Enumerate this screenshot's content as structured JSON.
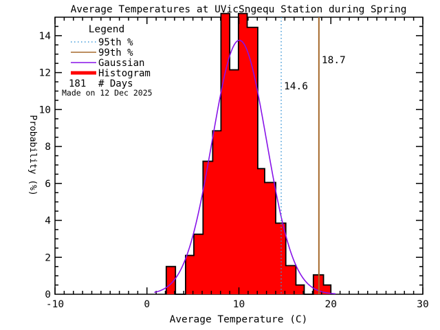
{
  "chart_data": {
    "type": "bar",
    "subtype": "histogram-with-gaussian-fit",
    "title": "Average Temperatures at UVicSngequ Station during Spring",
    "xlabel": "Average Temperature (C)",
    "ylabel": "Probability (%)",
    "xlim": [
      -10,
      30
    ],
    "ylim": [
      0,
      15
    ],
    "x_major_ticks": [
      -10,
      0,
      10,
      20,
      30
    ],
    "x_minor_step": 1,
    "y_major_ticks": [
      0,
      2,
      4,
      6,
      8,
      10,
      12,
      14
    ],
    "y_minor_step": 0.5,
    "grid": false,
    "legend": {
      "position": "top-left-inside",
      "title": "Legend",
      "items": [
        {
          "label": "95th %",
          "style": "dotted",
          "color": "#3F99D8"
        },
        {
          "label": "99th %",
          "style": "solid",
          "color": "#A5692B"
        },
        {
          "label": "Gaussian",
          "style": "solid",
          "color": "#8712E8"
        },
        {
          "label": "Histogram",
          "style": "thick",
          "color": "#FF0000"
        }
      ],
      "days_count": "181",
      "days_label": "# Days"
    },
    "histogram_bins": [
      {
        "x0": 2.1,
        "x1": 3.1,
        "h": 1.5
      },
      {
        "x0": 3.1,
        "x1": 4.2,
        "h": 0
      },
      {
        "x0": 4.2,
        "x1": 5.1,
        "h": 2.1
      },
      {
        "x0": 5.1,
        "x1": 6.1,
        "h": 3.25
      },
      {
        "x0": 6.1,
        "x1": 7.15,
        "h": 7.2
      },
      {
        "x0": 7.15,
        "x1": 8.05,
        "h": 8.85
      },
      {
        "x0": 8.05,
        "x1": 9.0,
        "h": 15.2
      },
      {
        "x0": 9.0,
        "x1": 9.95,
        "h": 12.15
      },
      {
        "x0": 9.95,
        "x1": 10.9,
        "h": 15.2
      },
      {
        "x0": 10.9,
        "x1": 12.05,
        "h": 14.45
      },
      {
        "x0": 12.05,
        "x1": 12.8,
        "h": 6.8
      },
      {
        "x0": 12.8,
        "x1": 14.0,
        "h": 6.05
      },
      {
        "x0": 14.0,
        "x1": 15.1,
        "h": 3.85
      },
      {
        "x0": 15.1,
        "x1": 16.2,
        "h": 1.55
      },
      {
        "x0": 16.2,
        "x1": 17.1,
        "h": 0.5
      },
      {
        "x0": 17.1,
        "x1": 18.1,
        "h": 0
      },
      {
        "x0": 18.1,
        "x1": 19.2,
        "h": 1.05
      },
      {
        "x0": 19.2,
        "x1": 20.0,
        "h": 0.5
      }
    ],
    "gaussian": {
      "mu": 10.05,
      "sigma": 2.95,
      "peak": 13.75,
      "draw_range": [
        0.8,
        20.6
      ]
    },
    "percentiles": [
      {
        "name": "95th",
        "value": 14.6,
        "label": "14.6",
        "color": "#3F99D8",
        "style": "dotted"
      },
      {
        "name": "99th",
        "value": 18.7,
        "label": "18.7",
        "color": "#A5692B",
        "style": "solid"
      }
    ],
    "histogram_fill_color": "#FF0000",
    "histogram_outline_color": "#000000",
    "axis_color": "#000000"
  },
  "watermark": "Made on 12 Dec 2025",
  "watermark_color": "#D0D0D0"
}
